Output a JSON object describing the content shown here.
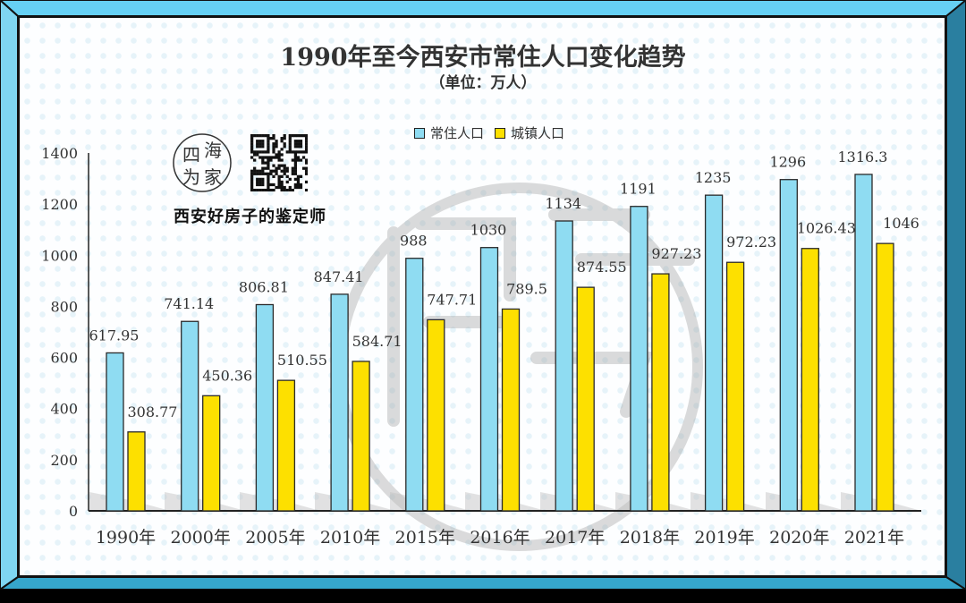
{
  "colors": {
    "frame_light": "#66d0f4",
    "frame_dark": "#2a7fa0",
    "frame_bottom": "#36a6cc",
    "series_total": "#8fdcf2",
    "series_urban": "#fde000",
    "outline": "#2a2a2a",
    "text": "#333333"
  },
  "brand": {
    "slogan": "西安好房子的鉴定师",
    "logo_chars": [
      "四",
      "海",
      "为",
      "家"
    ]
  },
  "chart_data": {
    "type": "bar",
    "title": "1990年至今西安市常住人口变化趋势",
    "subtitle": "（单位：万人）",
    "xlabel": "",
    "ylabel": "",
    "categories": [
      "1990年",
      "2000年",
      "2005年",
      "2010年",
      "2015年",
      "2016年",
      "2017年",
      "2018年",
      "2019年",
      "2020年",
      "2021年"
    ],
    "series": [
      {
        "name": "常住人口",
        "color": "#8fdcf2",
        "values": [
          617.95,
          741.14,
          806.81,
          847.41,
          988,
          1030,
          1134,
          1191,
          1235,
          1296,
          1316.3
        ],
        "labels": [
          "617.95",
          "741.14",
          "806.81",
          "847.41",
          "988",
          "1030",
          "1134",
          "1191",
          "1235",
          "1296",
          "1316.3"
        ]
      },
      {
        "name": "城镇人口",
        "color": "#fde000",
        "values": [
          308.77,
          450.36,
          510.55,
          584.71,
          747.71,
          789.5,
          874.55,
          927.23,
          972.23,
          1026.43,
          1046
        ],
        "labels": [
          "308.77",
          "450.36",
          "510.55",
          "584.71",
          "747.71",
          "789.5",
          "874.55",
          "927.23",
          "972.23",
          "1026.43",
          "1046"
        ]
      }
    ],
    "ylim": [
      0,
      1400
    ],
    "yticks": [
      0,
      200,
      400,
      600,
      800,
      1000,
      1200,
      1400
    ],
    "grid": false,
    "legend": "top-center"
  }
}
